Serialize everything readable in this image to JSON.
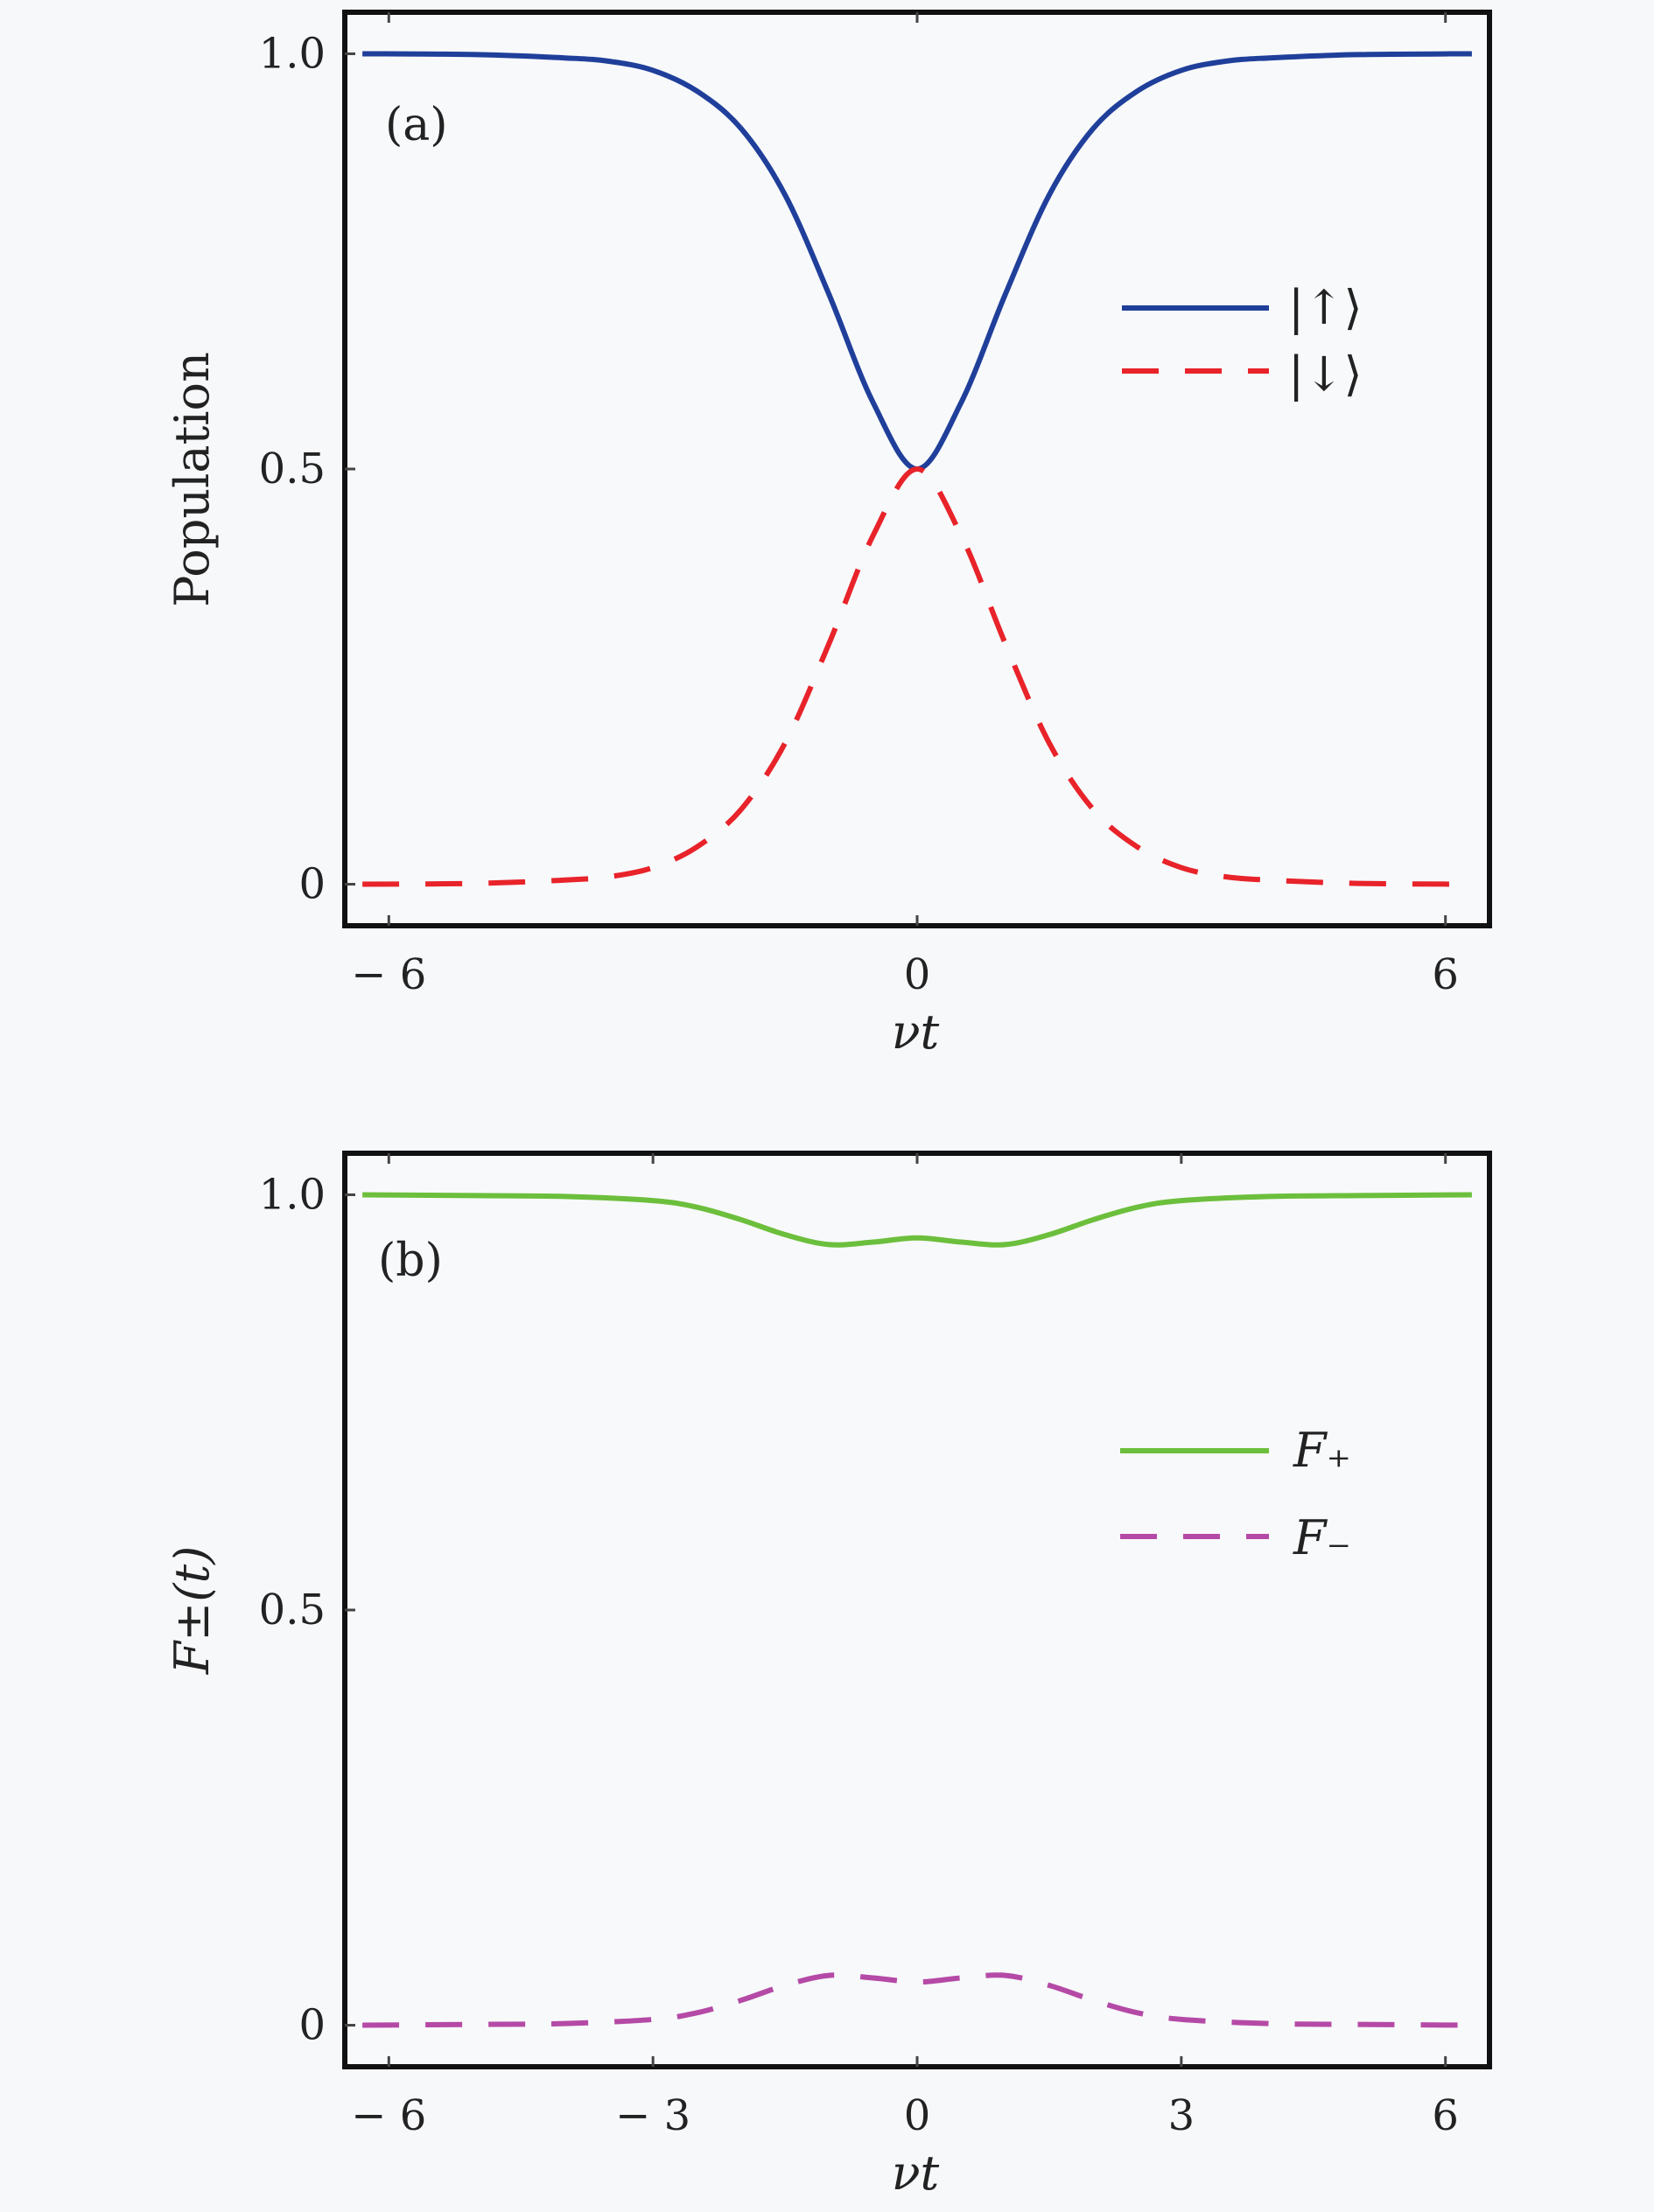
{
  "chart_data": [
    {
      "type": "line",
      "panel_label": "(a)",
      "xlabel": "νt",
      "ylabel": "Population",
      "xlim": [
        -6.5,
        6.5
      ],
      "ylim": [
        -0.05,
        1.05
      ],
      "xticks": [
        {
          "value": -6,
          "label": "− 6"
        },
        {
          "value": 0,
          "label": "0"
        },
        {
          "value": 6,
          "label": "6"
        }
      ],
      "yticks": [
        {
          "value": 0,
          "label": "0"
        },
        {
          "value": 0.5,
          "label": "0.5"
        },
        {
          "value": 1.0,
          "label": "1.0"
        }
      ],
      "legend": "right",
      "x": [
        -6.3,
        -5,
        -4,
        -3.5,
        -3,
        -2.5,
        -2,
        -1.5,
        -1,
        -0.5,
        0,
        0.5,
        1,
        1.5,
        2,
        2.5,
        3,
        3.5,
        4,
        5,
        6.3
      ],
      "series": [
        {
          "name": "|↑⟩",
          "color": "#1f3f9a",
          "dash": "solid",
          "values": [
            1.0,
            0.999,
            0.995,
            0.991,
            0.98,
            0.955,
            0.91,
            0.83,
            0.71,
            0.58,
            0.5,
            0.58,
            0.71,
            0.83,
            0.91,
            0.955,
            0.98,
            0.991,
            0.995,
            0.999,
            1.0
          ]
        },
        {
          "name": "|↓⟩",
          "color": "#e8232a",
          "dash": "dashed",
          "values": [
            0.0,
            0.001,
            0.005,
            0.009,
            0.02,
            0.045,
            0.09,
            0.17,
            0.29,
            0.42,
            0.5,
            0.42,
            0.29,
            0.17,
            0.09,
            0.045,
            0.02,
            0.009,
            0.005,
            0.001,
            0.0
          ]
        }
      ]
    },
    {
      "type": "line",
      "panel_label": "(b)",
      "xlabel": "νt",
      "ylabel": "F±(t)",
      "xlim": [
        -6.5,
        6.5
      ],
      "ylim": [
        -0.05,
        1.05
      ],
      "xticks": [
        {
          "value": -6,
          "label": "− 6"
        },
        {
          "value": -3,
          "label": "− 3"
        },
        {
          "value": 0,
          "label": "0"
        },
        {
          "value": 3,
          "label": "3"
        },
        {
          "value": 6,
          "label": "6"
        }
      ],
      "yticks": [
        {
          "value": 0,
          "label": "0"
        },
        {
          "value": 0.5,
          "label": "0.5"
        },
        {
          "value": 1.0,
          "label": "1.0"
        }
      ],
      "legend": "right",
      "x": [
        -6.3,
        -5,
        -4,
        -3,
        -2.5,
        -2,
        -1.5,
        -1,
        -0.5,
        0,
        0.5,
        1,
        1.5,
        2,
        2.5,
        3,
        4,
        5,
        6.3
      ],
      "series": [
        {
          "name": "F₊",
          "color": "#6cbf3c",
          "dash": "solid",
          "values": [
            1.0,
            0.999,
            0.998,
            0.993,
            0.985,
            0.97,
            0.952,
            0.94,
            0.943,
            0.948,
            0.943,
            0.94,
            0.952,
            0.97,
            0.985,
            0.993,
            0.998,
            0.999,
            1.0
          ]
        },
        {
          "name": "F₋",
          "color": "#b54aa6",
          "dash": "dashed",
          "values": [
            0.0,
            0.001,
            0.002,
            0.007,
            0.015,
            0.03,
            0.048,
            0.06,
            0.057,
            0.052,
            0.057,
            0.06,
            0.048,
            0.03,
            0.015,
            0.007,
            0.002,
            0.001,
            0.0
          ]
        }
      ]
    }
  ]
}
